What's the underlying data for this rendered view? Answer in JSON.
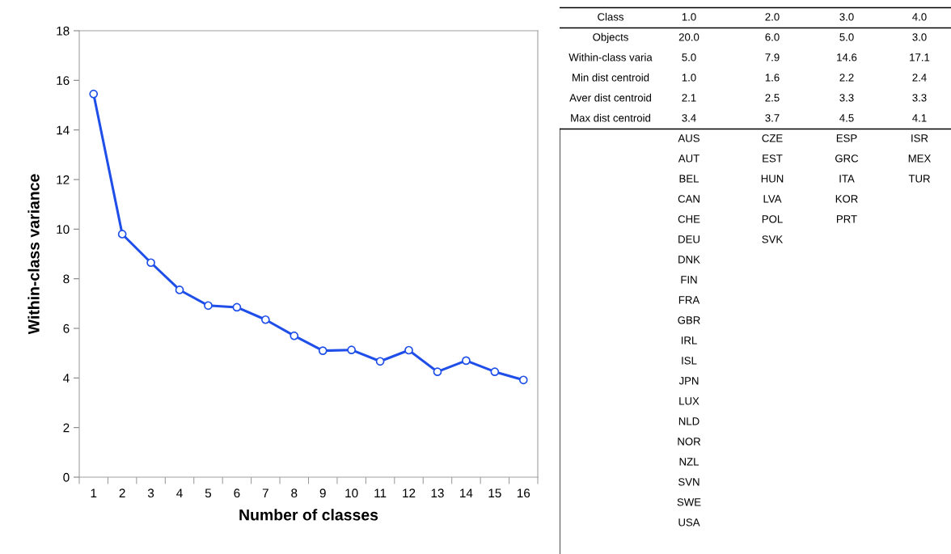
{
  "chart_data": [
    {
      "type": "line",
      "xlabel": "Number of classes",
      "ylabel": "Within-class variance",
      "categories": [
        "1",
        "2",
        "3",
        "4",
        "5",
        "6",
        "7",
        "8",
        "9",
        "10",
        "11",
        "12",
        "13",
        "14",
        "15",
        "16"
      ],
      "series": [
        {
          "color": "#1f4fe8",
          "values": [
            15.45,
            9.8,
            8.65,
            7.55,
            6.92,
            6.85,
            6.35,
            5.7,
            5.1,
            5.13,
            4.67,
            5.12,
            4.25,
            4.7,
            4.25,
            3.92
          ]
        }
      ],
      "ylim": [
        0,
        18
      ],
      "yticks": [
        0,
        2,
        4,
        6,
        8,
        10,
        12,
        14,
        16,
        18
      ],
      "marker": "circle",
      "line_style": "solid",
      "grid": false,
      "legend": false
    },
    {
      "type": "other",
      "cell_labels": [
        [
          "Class",
          "1.0",
          "2.0",
          "3.0",
          "4.0"
        ],
        [
          "Objects",
          "20.0",
          "6.0",
          "5.0",
          "3.0"
        ],
        [
          "Within-class varia",
          "5.0",
          "7.9",
          "14.6",
          "17.1"
        ],
        [
          "Min dist centroid",
          "1.0",
          "1.6",
          "2.2",
          "2.4"
        ],
        [
          "Aver dist centroid",
          "2.1",
          "2.5",
          "3.3",
          "3.3"
        ],
        [
          "Max dist centroid",
          "3.4",
          "3.7",
          "4.5",
          "4.1"
        ],
        [
          null,
          "AUS",
          "CZE",
          "ESP",
          "ISR"
        ],
        [
          null,
          "AUT",
          "EST",
          "GRC",
          "MEX"
        ],
        [
          null,
          "BEL",
          "HUN",
          "ITA",
          "TUR"
        ],
        [
          null,
          "CAN",
          "LVA",
          "KOR",
          null
        ],
        [
          null,
          "CHE",
          "POL",
          "PRT",
          null
        ],
        [
          null,
          "DEU",
          "SVK",
          null,
          null
        ],
        [
          null,
          "DNK",
          null,
          null,
          null
        ],
        [
          null,
          "FIN",
          null,
          null,
          null
        ],
        [
          null,
          "FRA",
          null,
          null,
          null
        ],
        [
          null,
          "GBR",
          null,
          null,
          null
        ],
        [
          null,
          "IRL",
          null,
          null,
          null
        ],
        [
          null,
          "ISL",
          null,
          null,
          null
        ],
        [
          null,
          "JPN",
          null,
          null,
          null
        ],
        [
          null,
          "LUX",
          null,
          null,
          null
        ],
        [
          null,
          "NLD",
          null,
          null,
          null
        ],
        [
          null,
          "NOR",
          null,
          null,
          null
        ],
        [
          null,
          "NZL",
          null,
          null,
          null
        ],
        [
          null,
          "SVN",
          null,
          null,
          null
        ],
        [
          null,
          "SWE",
          null,
          null,
          null
        ],
        [
          null,
          "USA",
          null,
          null,
          null
        ]
      ]
    }
  ]
}
